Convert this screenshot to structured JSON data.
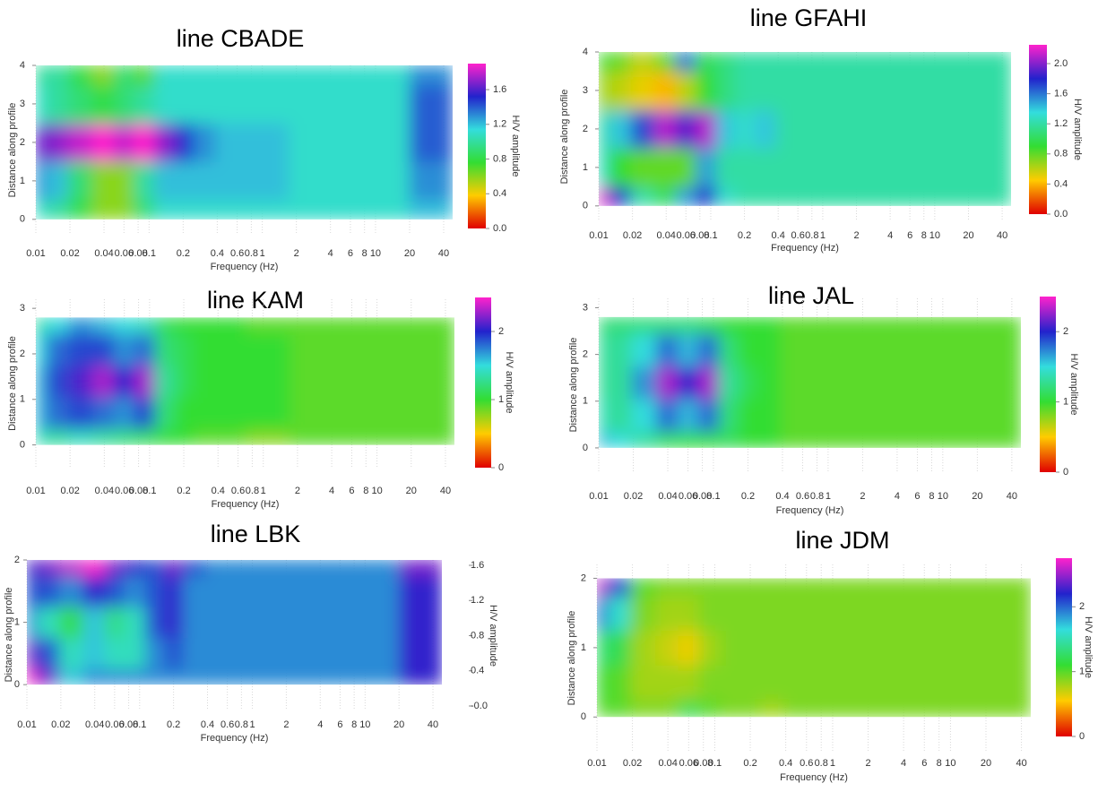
{
  "chart_data": [
    {
      "type": "heatmap",
      "title": "line CBADE",
      "xlabel": "Frequency (Hz)",
      "ylabel": "Distance along profile",
      "zlabel": "H/V amplitude",
      "xscale": "log",
      "xlim": [
        0.01,
        48
      ],
      "ylim": [
        -0.4,
        4
      ],
      "xticks": [
        0.01,
        0.02,
        0.04,
        0.06,
        0.08,
        0.1,
        0.2,
        0.4,
        0.6,
        0.8,
        1,
        2,
        4,
        6,
        8,
        10,
        20,
        40
      ],
      "yticks": [
        0,
        1,
        2,
        3,
        4
      ],
      "zlim": [
        0,
        1.9
      ],
      "zticks": [
        {
          "value": 0,
          "label": "0.0"
        },
        0.4,
        0.8,
        1.2,
        1.6
      ],
      "colorbar": true,
      "colorscale": [
        "#e00000",
        "#ffcc00",
        "#33dd33",
        "#33dddd",
        "#2222cc",
        "#ff22cc"
      ],
      "x": [
        0.01,
        0.015,
        0.025,
        0.04,
        0.06,
        0.09,
        0.14,
        0.2,
        0.3,
        0.5,
        1,
        3,
        10,
        40
      ],
      "y": [
        0,
        1,
        2,
        3,
        4
      ],
      "z": [
        [
          1.1,
          1.0,
          0.8,
          0.6,
          0.6,
          0.9,
          1.1,
          1.1,
          1.1,
          1.1,
          1.1,
          1.1,
          1.1,
          1.2
        ],
        [
          1.3,
          1.2,
          0.9,
          0.6,
          0.6,
          1.0,
          1.2,
          1.2,
          1.2,
          1.2,
          1.2,
          1.1,
          1.1,
          1.3
        ],
        [
          1.6,
          1.7,
          1.8,
          1.9,
          1.8,
          1.9,
          1.7,
          1.5,
          1.3,
          1.2,
          1.2,
          1.1,
          1.1,
          1.4
        ],
        [
          1.1,
          1.0,
          0.9,
          0.8,
          0.9,
          1.0,
          1.1,
          1.1,
          1.1,
          1.1,
          1.1,
          1.1,
          1.1,
          1.4
        ],
        [
          1.0,
          1.0,
          0.8,
          0.6,
          0.9,
          0.7,
          1.1,
          1.1,
          1.1,
          1.1,
          1.1,
          1.1,
          1.1,
          1.3
        ]
      ]
    },
    {
      "type": "heatmap",
      "title": "line GFAHI",
      "xlabel": "Frequency (Hz)",
      "ylabel": "Distance along profile",
      "zlabel": "H/V amplitude",
      "xscale": "log",
      "xlim": [
        0.01,
        48
      ],
      "ylim": [
        -0.4,
        4
      ],
      "xticks": [
        0.01,
        0.02,
        0.04,
        0.06,
        0.08,
        0.1,
        0.2,
        0.4,
        0.6,
        0.8,
        1,
        2,
        4,
        6,
        8,
        10,
        20,
        40
      ],
      "yticks": [
        0,
        1,
        2,
        3,
        4
      ],
      "zlim": [
        0,
        2.25
      ],
      "zticks": [
        {
          "value": 0,
          "label": "0.0"
        },
        0.4,
        0.8,
        1.2,
        1.6,
        {
          "value": 2,
          "label": "2.0"
        }
      ],
      "colorbar": true,
      "colorscale": [
        "#e00000",
        "#ffcc00",
        "#33dd33",
        "#33dddd",
        "#2222cc",
        "#ff22cc"
      ],
      "x": [
        0.01,
        0.015,
        0.025,
        0.04,
        0.06,
        0.09,
        0.14,
        0.2,
        0.3,
        0.5,
        1,
        3,
        10,
        40
      ],
      "y": [
        0,
        1,
        2,
        3,
        4
      ],
      "z": [
        [
          2.2,
          1.8,
          1.2,
          1.0,
          1.5,
          1.8,
          1.3,
          1.2,
          1.2,
          1.2,
          1.2,
          1.2,
          1.2,
          1.2
        ],
        [
          1.3,
          0.9,
          0.8,
          0.8,
          0.8,
          1.5,
          1.2,
          1.2,
          1.2,
          1.2,
          1.2,
          1.2,
          1.2,
          1.2
        ],
        [
          1.2,
          1.4,
          1.7,
          2.1,
          1.9,
          2.1,
          1.4,
          1.3,
          1.4,
          1.2,
          1.2,
          1.2,
          1.2,
          1.2
        ],
        [
          0.7,
          0.6,
          0.5,
          0.4,
          0.6,
          0.9,
          1.1,
          1.2,
          1.2,
          1.2,
          1.2,
          1.2,
          1.2,
          1.2
        ],
        [
          0.9,
          0.8,
          0.6,
          0.8,
          1.6,
          1.0,
          1.1,
          1.2,
          1.2,
          1.2,
          1.2,
          1.2,
          1.2,
          1.2
        ]
      ]
    },
    {
      "type": "heatmap",
      "title": "line KAM",
      "xlabel": "Frequency (Hz)",
      "ylabel": "Distance along profile",
      "zlabel": "H/V amplitude",
      "xscale": "log",
      "xlim": [
        0.01,
        48
      ],
      "ylim": [
        -0.5,
        3.2
      ],
      "xticks": [
        0.01,
        0.02,
        0.04,
        0.06,
        0.08,
        0.1,
        0.2,
        0.4,
        0.6,
        0.8,
        1,
        2,
        4,
        6,
        8,
        10,
        20,
        40
      ],
      "yticks": [
        0,
        1,
        2,
        3
      ],
      "zlim": [
        0,
        2.5
      ],
      "zticks": [
        0,
        1,
        2
      ],
      "colorbar": true,
      "colorscale": [
        "#e00000",
        "#ffcc00",
        "#33dd33",
        "#33dddd",
        "#2222cc",
        "#ff22cc"
      ],
      "x": [
        0.01,
        0.015,
        0.025,
        0.04,
        0.06,
        0.09,
        0.14,
        0.2,
        0.3,
        0.5,
        1,
        3,
        10,
        40
      ],
      "y": [
        0,
        0.7,
        1.4,
        2.1,
        2.8
      ],
      "z": [
        [
          1.4,
          1.3,
          1.4,
          1.3,
          1.2,
          1.1,
          1.0,
          1.0,
          0.9,
          0.9,
          0.8,
          0.9,
          0.9,
          0.9
        ],
        [
          1.6,
          1.8,
          1.9,
          1.8,
          1.7,
          1.9,
          1.2,
          1.0,
          1.0,
          1.0,
          1.0,
          0.9,
          0.9,
          0.9
        ],
        [
          1.6,
          1.9,
          2.1,
          2.3,
          2.0,
          2.3,
          1.3,
          1.1,
          1.0,
          1.0,
          1.0,
          0.9,
          0.9,
          0.9
        ],
        [
          1.5,
          1.8,
          1.9,
          1.9,
          1.7,
          1.8,
          1.2,
          1.1,
          1.0,
          1.0,
          1.0,
          0.9,
          0.9,
          0.9
        ],
        [
          1.3,
          1.5,
          1.7,
          1.6,
          1.5,
          1.4,
          1.1,
          1.0,
          1.0,
          1.0,
          0.9,
          0.9,
          0.9,
          0.9
        ]
      ]
    },
    {
      "type": "heatmap",
      "title": "line JAL",
      "xlabel": "Frequency (Hz)",
      "ylabel": "Distance along profile",
      "zlabel": "H/V amplitude",
      "xscale": "log",
      "xlim": [
        0.01,
        48
      ],
      "ylim": [
        -0.5,
        3.2
      ],
      "xticks": [
        0.01,
        0.02,
        0.04,
        0.06,
        0.08,
        0.1,
        0.2,
        0.4,
        0.6,
        0.8,
        1,
        2,
        4,
        6,
        8,
        10,
        20,
        40
      ],
      "yticks": [
        0,
        1,
        2,
        3
      ],
      "zlim": [
        0,
        2.5
      ],
      "zticks": [
        0,
        1,
        2
      ],
      "colorbar": true,
      "colorscale": [
        "#e00000",
        "#ffcc00",
        "#33dd33",
        "#33dddd",
        "#2222cc",
        "#ff22cc"
      ],
      "x": [
        0.01,
        0.015,
        0.025,
        0.04,
        0.06,
        0.09,
        0.14,
        0.2,
        0.3,
        0.5,
        1,
        3,
        10,
        40
      ],
      "y": [
        0,
        0.7,
        1.4,
        2.1,
        2.8
      ],
      "z": [
        [
          1.6,
          1.5,
          1.3,
          1.1,
          1.0,
          1.0,
          1.1,
          1.0,
          1.0,
          0.9,
          0.9,
          0.9,
          0.9,
          0.9
        ],
        [
          1.4,
          1.3,
          1.5,
          1.8,
          1.6,
          1.8,
          1.2,
          1.0,
          1.0,
          0.9,
          0.9,
          0.9,
          0.9,
          0.9
        ],
        [
          1.3,
          1.3,
          1.7,
          2.3,
          2.0,
          2.3,
          1.3,
          1.1,
          1.0,
          0.9,
          0.9,
          0.9,
          0.9,
          0.9
        ],
        [
          1.3,
          1.3,
          1.5,
          1.8,
          1.6,
          1.8,
          1.2,
          1.0,
          1.0,
          0.9,
          0.9,
          0.9,
          0.9,
          0.9
        ],
        [
          1.2,
          1.2,
          1.2,
          1.2,
          1.2,
          1.1,
          1.0,
          1.0,
          1.0,
          0.9,
          0.9,
          0.9,
          0.9,
          0.9
        ]
      ]
    },
    {
      "type": "heatmap",
      "title": "line LBK",
      "xlabel": "Frequency (Hz)",
      "ylabel": "Distance along profile",
      "zlabel": "H/V amplitude",
      "xscale": "log",
      "xlim": [
        0.01,
        48
      ],
      "ylim": [
        -0.4,
        2
      ],
      "xticks": [
        0.01,
        0.02,
        0.04,
        0.06,
        0.08,
        0.1,
        0.2,
        0.4,
        0.6,
        0.8,
        1,
        2,
        4,
        6,
        8,
        10,
        20,
        40
      ],
      "yticks": [
        0,
        1,
        2
      ],
      "zlim": [
        0,
        1.6
      ],
      "zticks": [
        {
          "value": 0,
          "label": "-0.0"
        },
        0.4,
        0.8,
        1.2,
        1.6
      ],
      "colorbar": false,
      "colorscale": [
        "#e00000",
        "#ffcc00",
        "#33dd33",
        "#33dddd",
        "#2222cc",
        "#ff22cc"
      ],
      "x": [
        0.01,
        0.015,
        0.025,
        0.04,
        0.06,
        0.09,
        0.14,
        0.2,
        0.3,
        0.5,
        1,
        3,
        10,
        40
      ],
      "y": [
        0,
        0.5,
        1,
        1.5,
        2
      ],
      "z": [
        [
          1.6,
          1.4,
          1.0,
          1.1,
          1.1,
          1.1,
          1.1,
          1.1,
          1.1,
          1.1,
          1.1,
          1.1,
          1.1,
          1.3
        ],
        [
          1.4,
          1.2,
          0.9,
          1.0,
          0.9,
          0.9,
          1.1,
          1.2,
          1.1,
          1.1,
          1.1,
          1.1,
          1.1,
          1.3
        ],
        [
          1.1,
          0.9,
          0.7,
          1.0,
          0.8,
          0.9,
          1.2,
          1.3,
          1.1,
          1.1,
          1.1,
          1.1,
          1.1,
          1.3
        ],
        [
          1.2,
          1.2,
          1.1,
          1.3,
          1.2,
          1.1,
          1.2,
          1.3,
          1.1,
          1.1,
          1.1,
          1.1,
          1.1,
          1.3
        ],
        [
          1.3,
          1.4,
          1.5,
          1.6,
          1.4,
          1.3,
          1.2,
          1.4,
          1.2,
          1.1,
          1.1,
          1.1,
          1.1,
          1.4
        ]
      ]
    },
    {
      "type": "heatmap",
      "title": "line JDM",
      "xlabel": "Frequency (Hz)",
      "ylabel": "Distance along profile",
      "zlabel": "H/V amplitude",
      "xscale": "log",
      "xlim": [
        0.01,
        48
      ],
      "ylim": [
        -0.5,
        2.2
      ],
      "xticks": [
        0.01,
        0.02,
        0.04,
        0.06,
        0.08,
        0.1,
        0.2,
        0.4,
        0.6,
        0.8,
        1,
        2,
        4,
        6,
        8,
        10,
        20,
        40
      ],
      "yticks": [
        0,
        1,
        2
      ],
      "zlim": [
        0,
        2.75
      ],
      "zticks": [
        0,
        1,
        2
      ],
      "colorbar": true,
      "colorscale": [
        "#e00000",
        "#ffcc00",
        "#33dd33",
        "#33dddd",
        "#2222cc",
        "#ff22cc"
      ],
      "x": [
        0.01,
        0.015,
        0.025,
        0.04,
        0.06,
        0.09,
        0.14,
        0.2,
        0.3,
        0.5,
        1,
        3,
        10,
        40
      ],
      "y": [
        0,
        0.5,
        1,
        1.5,
        2
      ],
      "z": [
        [
          1.0,
          1.0,
          0.9,
          0.9,
          1.2,
          1.0,
          0.9,
          0.9,
          0.8,
          0.9,
          0.9,
          0.9,
          0.9,
          0.9
        ],
        [
          1.1,
          1.0,
          0.8,
          0.8,
          0.8,
          0.9,
          0.9,
          0.9,
          0.9,
          0.9,
          0.9,
          0.9,
          0.9,
          0.9
        ],
        [
          1.3,
          1.2,
          0.8,
          0.7,
          0.6,
          0.8,
          0.9,
          0.9,
          0.9,
          0.9,
          0.9,
          0.9,
          0.9,
          0.9
        ],
        [
          2.0,
          1.6,
          0.9,
          0.8,
          0.8,
          0.9,
          0.9,
          0.9,
          0.9,
          0.9,
          0.9,
          0.9,
          0.9,
          0.9
        ],
        [
          2.6,
          2.1,
          1.0,
          0.9,
          0.9,
          0.9,
          0.9,
          0.9,
          0.9,
          0.9,
          0.9,
          0.9,
          0.9,
          0.9
        ]
      ]
    }
  ]
}
